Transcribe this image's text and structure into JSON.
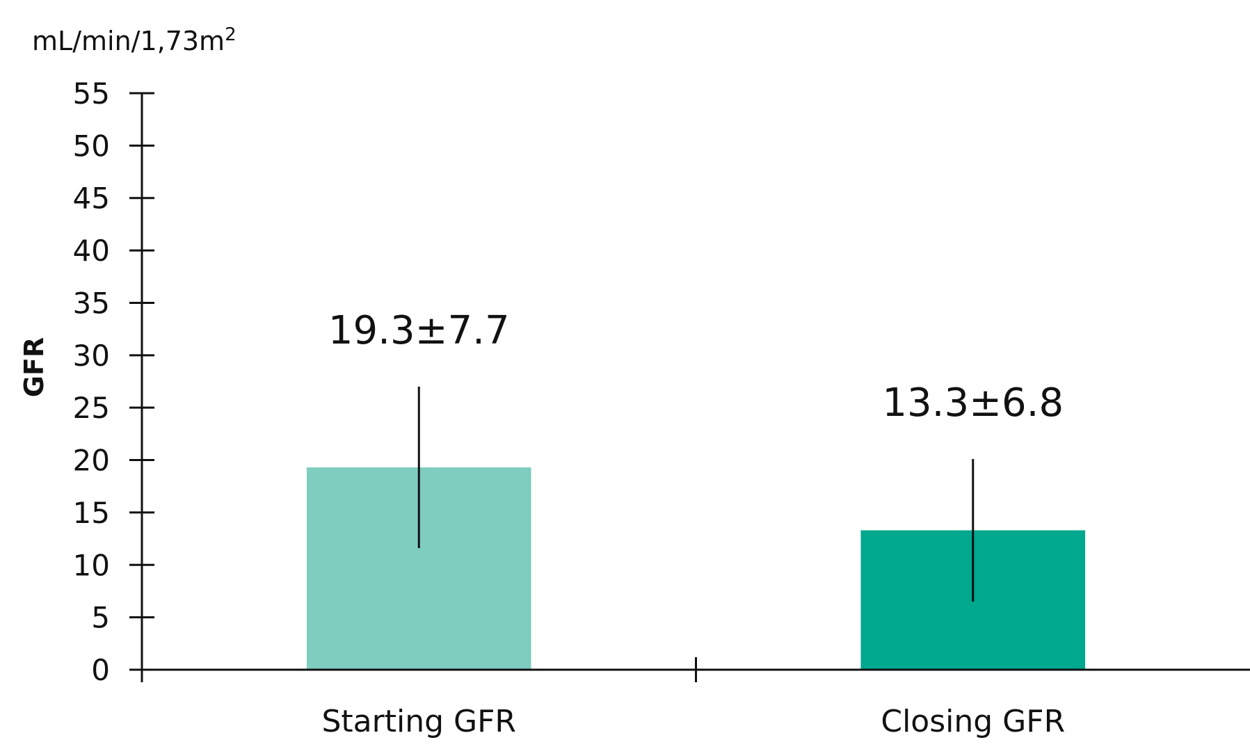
{
  "chart_data": {
    "type": "bar",
    "title": "",
    "unit_label": "mL/min/1,73m",
    "unit_superscript": "2",
    "ylabel": "GFR",
    "xlabel": "",
    "ylim": [
      0,
      55
    ],
    "yticks": [
      0,
      5,
      10,
      15,
      20,
      25,
      30,
      35,
      40,
      45,
      50,
      55
    ],
    "categories": [
      "Starting GFR",
      "Closing GFR"
    ],
    "values": [
      19.3,
      13.3
    ],
    "errors": [
      7.7,
      6.8
    ],
    "value_labels": [
      "19.3±7.7",
      "13.3±6.8"
    ],
    "colors": [
      "#7ecdbf",
      "#00a88e"
    ],
    "grid": false,
    "legend": "none"
  }
}
